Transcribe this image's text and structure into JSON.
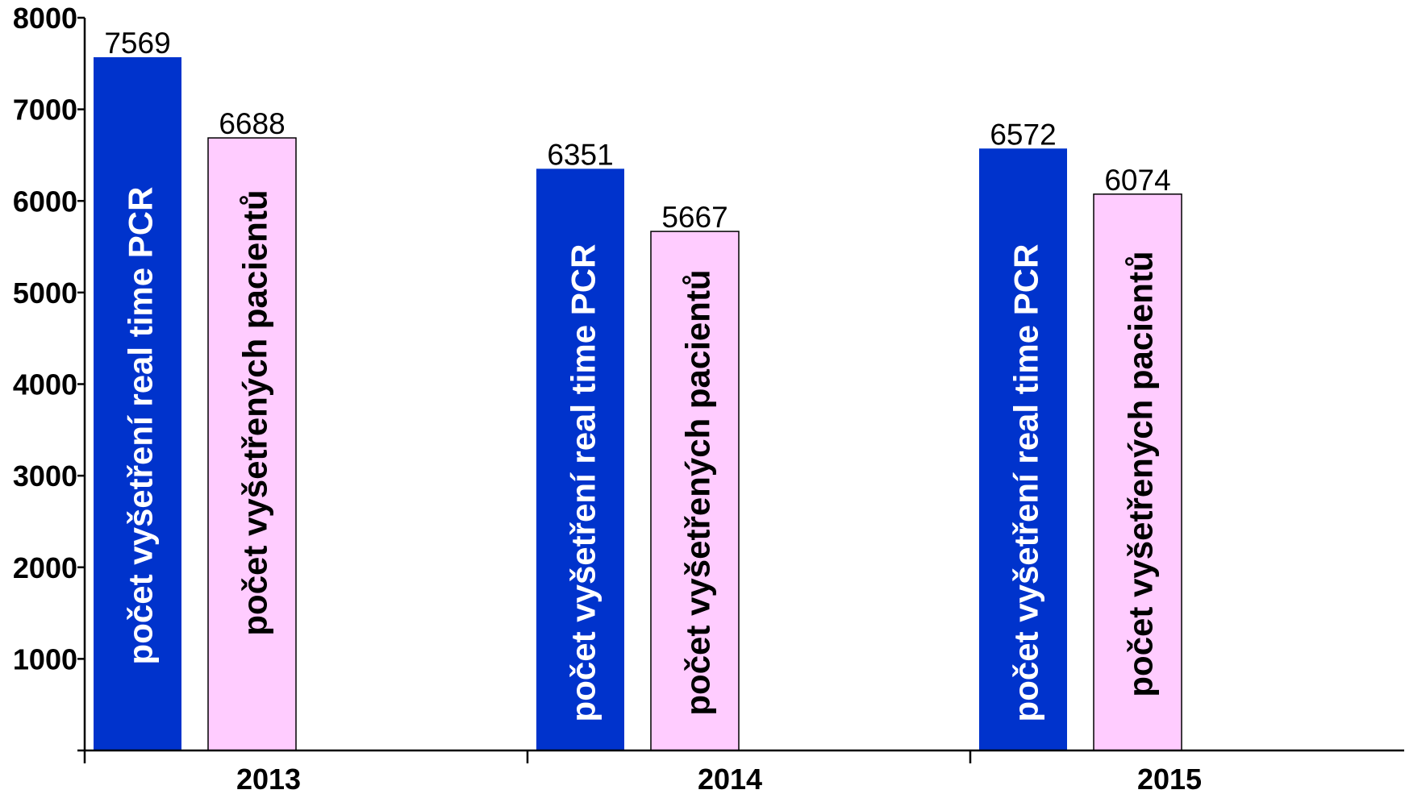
{
  "chart_data": {
    "type": "bar",
    "categories": [
      "2013",
      "2014",
      "2015"
    ],
    "series": [
      {
        "name": "počet vyšetření real time PCR",
        "values": [
          7569,
          6351,
          6572
        ],
        "color": "#0033CC",
        "label_color": "#FFFFFF"
      },
      {
        "name": "počet vyšetřených pacientů",
        "values": [
          6688,
          5667,
          6074
        ],
        "color": "#FFCCFF",
        "label_color": "#000000"
      }
    ],
    "ylim": [
      0,
      8000
    ],
    "yticks": [
      1000,
      2000,
      3000,
      4000,
      5000,
      6000,
      7000,
      8000
    ],
    "grid": false,
    "legend": "none"
  }
}
